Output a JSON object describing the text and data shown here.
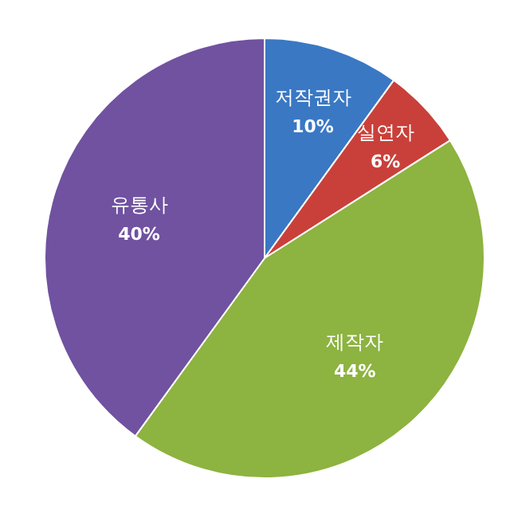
{
  "chart_data": {
    "type": "pie",
    "categories": [
      "저작권자",
      "실연자",
      "제작자",
      "유통사"
    ],
    "values": [
      10,
      6,
      44,
      40
    ],
    "colors": [
      "#3a78c4",
      "#c9403a",
      "#8db340",
      "#7052a0"
    ],
    "value_labels": [
      "10%",
      "6%",
      "44%",
      "40%"
    ]
  }
}
